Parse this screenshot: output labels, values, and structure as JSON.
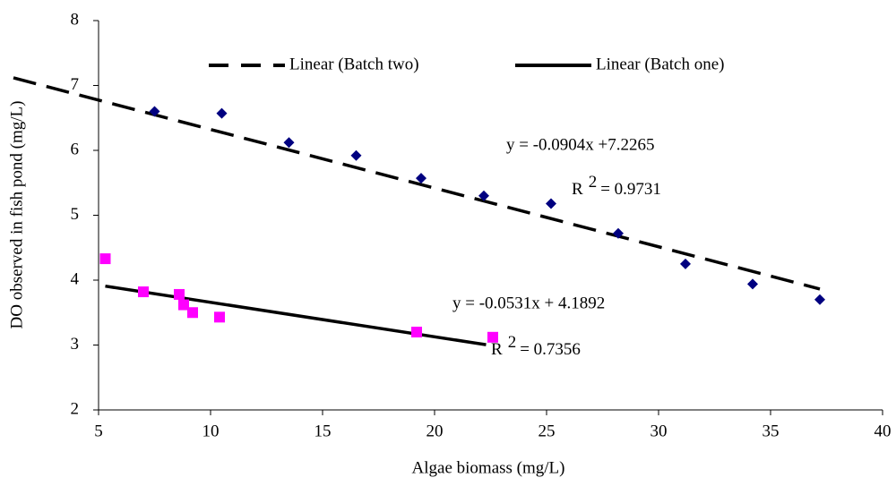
{
  "chart_data": {
    "type": "scatter",
    "x_label": "Algae biomass (mg/L)",
    "y_label": "DO observed in fish pond (mg/L)",
    "xlim": [
      5,
      40
    ],
    "xticks": [
      5,
      10,
      15,
      20,
      25,
      30,
      35,
      40
    ],
    "ylim": [
      2,
      8
    ],
    "yticks": [
      2,
      3,
      4,
      5,
      6,
      7,
      8
    ],
    "grid": false,
    "legend": "top",
    "series": [
      {
        "color": "#000080",
        "marker": "diamond",
        "x": [
          7.5,
          10.5,
          13.5,
          16.5,
          19.4,
          22.2,
          25.2,
          28.2,
          31.2,
          34.2,
          37.2
        ],
        "values": [
          6.6,
          6.57,
          6.12,
          5.92,
          5.57,
          5.3,
          5.18,
          4.72,
          4.25,
          3.94,
          3.7
        ],
        "trendline": {
          "name": "Linear (Batch two)",
          "style": "dashed",
          "color": "#000000",
          "slope": -0.0904,
          "intercept": 7.2265,
          "x_start": 1.2,
          "x_end": 37.2,
          "equation": "y = -0.0904x +7.2265",
          "r2": [
            "R",
            "2",
            "= 0.9731"
          ]
        }
      },
      {
        "color": "#ff00ff",
        "marker": "square",
        "x": [
          5.3,
          7.0,
          8.6,
          8.8,
          9.2,
          10.4,
          19.2,
          22.6
        ],
        "values": [
          4.33,
          3.82,
          3.78,
          3.62,
          3.5,
          3.43,
          3.2,
          3.12
        ],
        "trendline": {
          "name": "Linear (Batch one)",
          "style": "solid",
          "color": "#000000",
          "slope": -0.0531,
          "intercept": 4.1892,
          "x_start": 5.3,
          "x_end": 22.3,
          "equation": "y = -0.0531x + 4.1892",
          "r2": [
            "R",
            "2",
            "= 0.7356"
          ]
        }
      }
    ]
  }
}
